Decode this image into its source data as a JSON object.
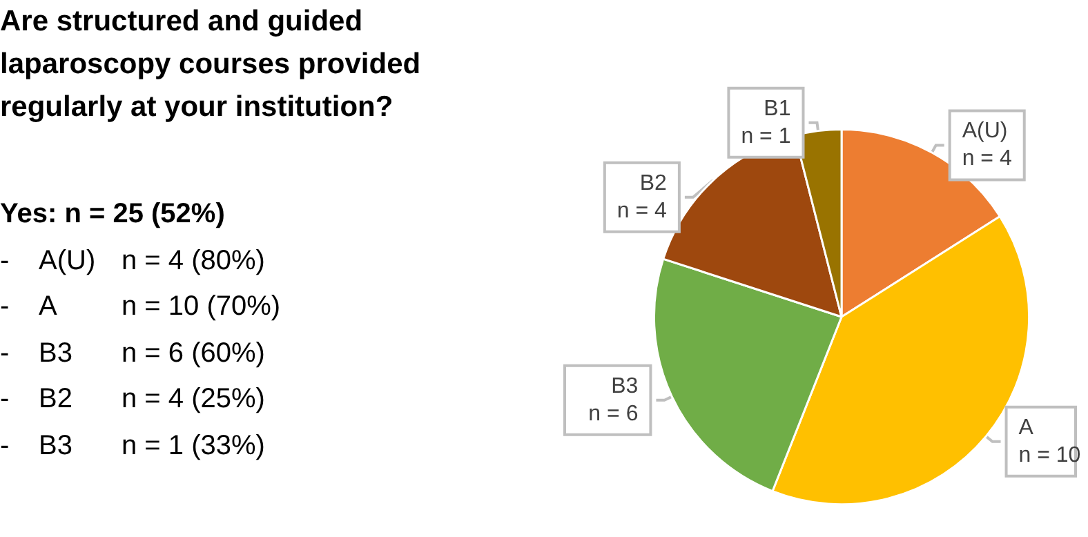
{
  "chart_data": {
    "type": "pie",
    "title": "Are structured and guided laparoscopy courses provided regularly at your institution?",
    "categories": [
      "A(U)",
      "A",
      "B3",
      "B2",
      "B1"
    ],
    "values": [
      4,
      10,
      6,
      4,
      1
    ],
    "value_labels": [
      "n = 4",
      "n = 10",
      "n = 6",
      "n = 4",
      "n = 1"
    ],
    "colors": [
      "#ed7d31",
      "#ffc000",
      "#70ad47",
      "#9e480e",
      "#997300"
    ],
    "annotations": [
      "Yes: n = 25 (52%)",
      "-\tA(U)\tn = 4 (80%)",
      "-\tA\tn = 10 (70%)",
      "-\tB3\tn = 6 (60%)",
      "-\tB2\tn = 4 (25%)",
      "-\tB3\tn = 1 (33%)"
    ],
    "legend": false
  }
}
